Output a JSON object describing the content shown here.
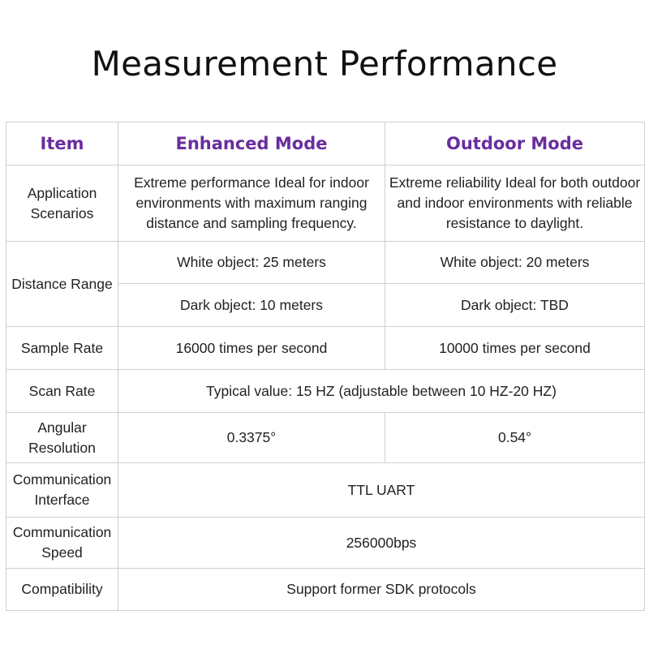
{
  "title": "Measurement Performance",
  "accent_color": "#6a2c9e",
  "headers": [
    "Item",
    "Enhanced Mode",
    "Outdoor Mode"
  ],
  "rows": {
    "application": {
      "label": "Application Scenarios",
      "enhanced": "Extreme performance Ideal for indoor environments with maximum ranging distance and sampling frequency.",
      "outdoor": "Extreme reliability Ideal for both outdoor and indoor environments with reliable resistance to daylight."
    },
    "distance": {
      "label": "Distance Range",
      "enhanced_white": "White object: 25 meters",
      "outdoor_white": "White object: 20 meters",
      "enhanced_dark": "Dark object: 10 meters",
      "outdoor_dark": "Dark object: TBD"
    },
    "sample_rate": {
      "label": "Sample Rate",
      "enhanced": "16000 times per second",
      "outdoor": "10000 times per second"
    },
    "scan_rate": {
      "label": "Scan Rate",
      "value": "Typical value: 15 HZ (adjustable between 10 HZ-20 HZ)"
    },
    "angular": {
      "label": "Angular Resolution",
      "enhanced": "0.3375°",
      "outdoor": "0.54°"
    },
    "comm_interface": {
      "label": "Communication Interface",
      "value": "TTL UART"
    },
    "comm_speed": {
      "label": "Communication Speed",
      "value": "256000bps"
    },
    "compatibility": {
      "label": "Compatibility",
      "value": "Support former SDK protocols"
    }
  }
}
